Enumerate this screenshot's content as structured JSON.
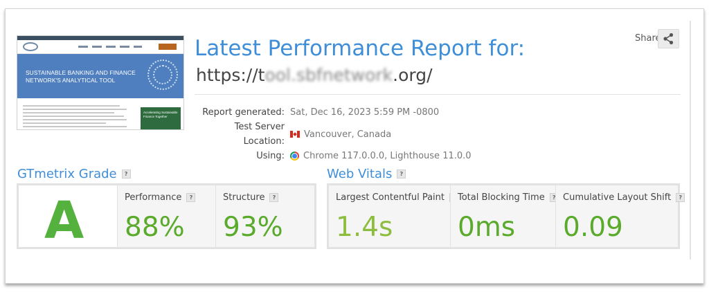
{
  "header": {
    "title": "Latest Performance Report for:",
    "url_prefix": "https://t",
    "url_obscured": "ool.sbfnetwork",
    "url_suffix": ".org/",
    "share_label": "Share",
    "share_icon": "share-icon"
  },
  "thumbnail": {
    "hero_text_line1": "SUSTAINABLE BANKING AND FINANCE",
    "hero_text_line2": "NETWORK'S ANALYTICAL TOOL",
    "card_text_line1": "Accelerating Sustainable",
    "card_text_line2": "Finance Together"
  },
  "meta": {
    "report_generated_label": "Report generated:",
    "report_generated_value": "Sat, Dec 16, 2023 5:59 PM -0800",
    "location_label": "Test Server Location:",
    "location_value": "Vancouver, Canada",
    "location_icon": "canada-flag-icon",
    "using_label": "Using:",
    "using_value": "Chrome 117.0.0.0, Lighthouse 11.0.0",
    "using_icon": "chrome-icon"
  },
  "grade": {
    "section_title": "GTmetrix Grade",
    "letter": "A",
    "performance_label": "Performance",
    "performance_value": "88%",
    "structure_label": "Structure",
    "structure_value": "93%"
  },
  "vitals": {
    "section_title": "Web Vitals",
    "lcp_label": "Largest Contentful Paint",
    "lcp_value": "1.4s",
    "tbt_label": "Total Blocking Time",
    "tbt_value": "0ms",
    "cls_label": "Cumulative Layout Shift",
    "cls_value": "0.09"
  },
  "help_glyph": "?",
  "colors": {
    "title_blue": "#3f8ed8",
    "grade_green": "#55b13e",
    "good_green": "#5aaa2c",
    "lcp_green": "#8cbd3f"
  }
}
